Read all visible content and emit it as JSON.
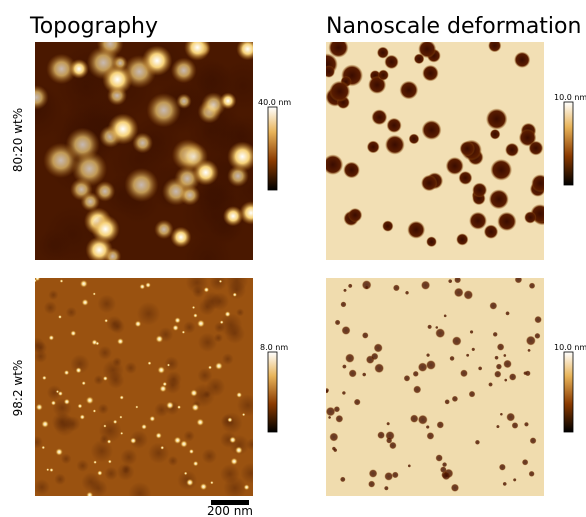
{
  "columns": [
    "Topography",
    "Nanoscale deformation"
  ],
  "rows": [
    {
      "label": "80:20 wt%",
      "colorbars": [
        "40.0 nm",
        "10.0 nm"
      ]
    },
    {
      "label": "98:2 wt%",
      "colorbars": [
        "8.0 nm",
        "10.0 nm"
      ]
    }
  ],
  "scale_bar": "200 nm"
}
